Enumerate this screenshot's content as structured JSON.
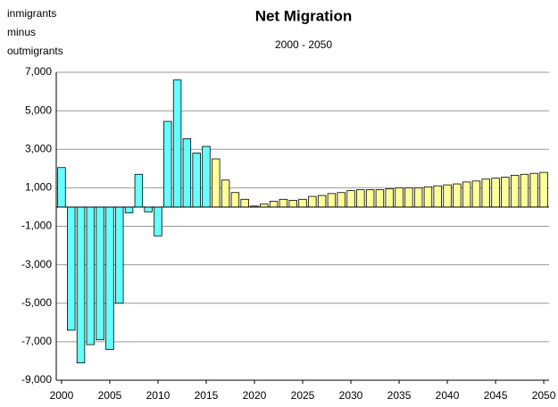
{
  "chart_data": {
    "type": "bar",
    "title": "Net Migration",
    "subtitle": "2000 - 2050",
    "y_label": [
      "inmigrants",
      "minus",
      "outmigrants"
    ],
    "x": [
      2000,
      2001,
      2002,
      2003,
      2004,
      2005,
      2006,
      2007,
      2008,
      2009,
      2010,
      2011,
      2012,
      2013,
      2014,
      2015,
      2016,
      2017,
      2018,
      2019,
      2020,
      2021,
      2022,
      2023,
      2024,
      2025,
      2026,
      2027,
      2028,
      2029,
      2030,
      2031,
      2032,
      2033,
      2034,
      2035,
      2036,
      2037,
      2038,
      2039,
      2040,
      2041,
      2042,
      2043,
      2044,
      2045,
      2046,
      2047,
      2048,
      2049,
      2050
    ],
    "values": [
      2050,
      -6400,
      -8100,
      -7150,
      -6900,
      -7400,
      -5000,
      -300,
      1700,
      -250,
      -1500,
      4450,
      6600,
      3550,
      2800,
      3150,
      2500,
      1400,
      750,
      400,
      50,
      150,
      300,
      400,
      350,
      400,
      550,
      600,
      700,
      750,
      850,
      900,
      900,
      900,
      950,
      1000,
      1000,
      1000,
      1050,
      1100,
      1150,
      1200,
      1300,
      1350,
      1450,
      1500,
      1550,
      1650,
      1700,
      1750,
      1800
    ],
    "colors": [
      "#66ffff",
      "#66ffff",
      "#66ffff",
      "#66ffff",
      "#66ffff",
      "#66ffff",
      "#66ffff",
      "#66ffff",
      "#66ffff",
      "#66ffff",
      "#66ffff",
      "#66ffff",
      "#66ffff",
      "#66ffff",
      "#66ffff",
      "#66ffff",
      "#ffff99",
      "#ffff99",
      "#ffff99",
      "#ffff99",
      "#ffff99",
      "#ffff99",
      "#ffff99",
      "#ffff99",
      "#ffff99",
      "#ffff99",
      "#ffff99",
      "#ffff99",
      "#ffff99",
      "#ffff99",
      "#ffff99",
      "#ffff99",
      "#ffff99",
      "#ffff99",
      "#ffff99",
      "#ffff99",
      "#ffff99",
      "#ffff99",
      "#ffff99",
      "#ffff99",
      "#ffff99",
      "#ffff99",
      "#ffff99",
      "#ffff99",
      "#ffff99",
      "#ffff99",
      "#ffff99",
      "#ffff99",
      "#ffff99",
      "#ffff99",
      "#ffff99"
    ],
    "xlim": [
      1999.45,
      2050.55
    ],
    "xticks": [
      2000,
      2005,
      2010,
      2015,
      2020,
      2025,
      2030,
      2035,
      2040,
      2045,
      2050
    ],
    "ylim": [
      -9000,
      7000
    ],
    "yticks": [
      {
        "value": 7000,
        "label": "7,000"
      },
      {
        "value": 5000,
        "label": "5,000"
      },
      {
        "value": 3000,
        "label": "3,000"
      },
      {
        "value": 1000,
        "label": "1,000"
      },
      {
        "value": -1000,
        "label": "-1,000"
      },
      {
        "value": -3000,
        "label": "-3,000"
      },
      {
        "value": -5000,
        "label": "-5,000"
      },
      {
        "value": -7000,
        "label": "-7,000"
      },
      {
        "value": -9000,
        "label": "-9,000"
      }
    ],
    "grid": true
  }
}
